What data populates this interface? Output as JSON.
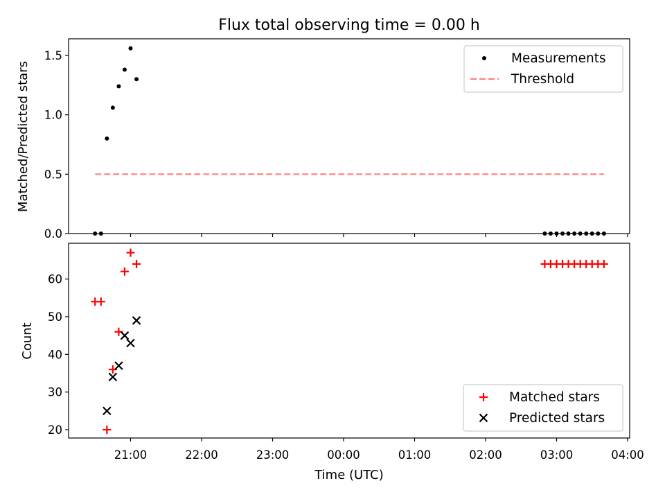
{
  "title": "Flux total observing time = 0.00 h",
  "colors": {
    "measurement": "#000000",
    "threshold": "#ff7f7f",
    "matched": "#ff0000",
    "predicted": "#000000"
  },
  "chart_data": [
    {
      "type": "scatter",
      "panel": "top",
      "ylabel": "Matched/Predicted stars",
      "ylim": [
        0,
        1.64
      ],
      "yticks": [
        0.0,
        0.5,
        1.0,
        1.5
      ],
      "ytick_labels": [
        "0.0",
        "0.5",
        "1.0",
        "1.5"
      ],
      "legend": {
        "placement": "upper right",
        "entries": [
          "Measurements",
          "Threshold"
        ]
      },
      "series": [
        {
          "name": "Measurements",
          "x": [
            "20:30",
            "20:35",
            "20:40",
            "20:45",
            "20:50",
            "20:55",
            "21:00",
            "21:05",
            "02:50",
            "02:55",
            "03:00",
            "03:05",
            "03:10",
            "03:15",
            "03:20",
            "03:25",
            "03:30",
            "03:35",
            "03:40"
          ],
          "values": [
            0,
            0,
            0.8,
            1.06,
            1.24,
            1.38,
            1.56,
            1.3,
            0,
            0,
            0,
            0,
            0,
            0,
            0,
            0,
            0,
            0,
            0
          ]
        },
        {
          "name": "Threshold",
          "x": [
            "20:30",
            "03:40"
          ],
          "values": [
            0.5,
            0.5
          ]
        }
      ]
    },
    {
      "type": "scatter",
      "panel": "bottom",
      "xlabel": "Time (UTC)",
      "ylabel": "Count",
      "ylim": [
        17.8,
        69.5
      ],
      "yticks": [
        20,
        30,
        40,
        50,
        60
      ],
      "ytick_labels": [
        "20",
        "30",
        "40",
        "50",
        "60"
      ],
      "xtick_labels": [
        "21:00",
        "22:00",
        "23:00",
        "00:00",
        "01:00",
        "02:00",
        "03:00",
        "04:00"
      ],
      "legend": {
        "placement": "lower right",
        "entries": [
          "Matched stars",
          "Predicted stars"
        ]
      },
      "series": [
        {
          "name": "Matched stars",
          "x": [
            "20:30",
            "20:35",
            "20:40",
            "20:45",
            "20:50",
            "20:55",
            "21:00",
            "21:05",
            "02:50",
            "02:55",
            "03:00",
            "03:05",
            "03:10",
            "03:15",
            "03:20",
            "03:25",
            "03:30",
            "03:35",
            "03:40"
          ],
          "values": [
            54,
            54,
            20,
            36,
            46,
            62,
            67,
            64,
            64,
            64,
            64,
            64,
            64,
            64,
            64,
            64,
            64,
            64,
            64
          ]
        },
        {
          "name": "Predicted stars",
          "x": [
            "20:40",
            "20:45",
            "20:50",
            "20:55",
            "21:00",
            "21:05"
          ],
          "values": [
            25,
            34,
            37,
            45,
            43,
            49
          ]
        }
      ]
    }
  ]
}
